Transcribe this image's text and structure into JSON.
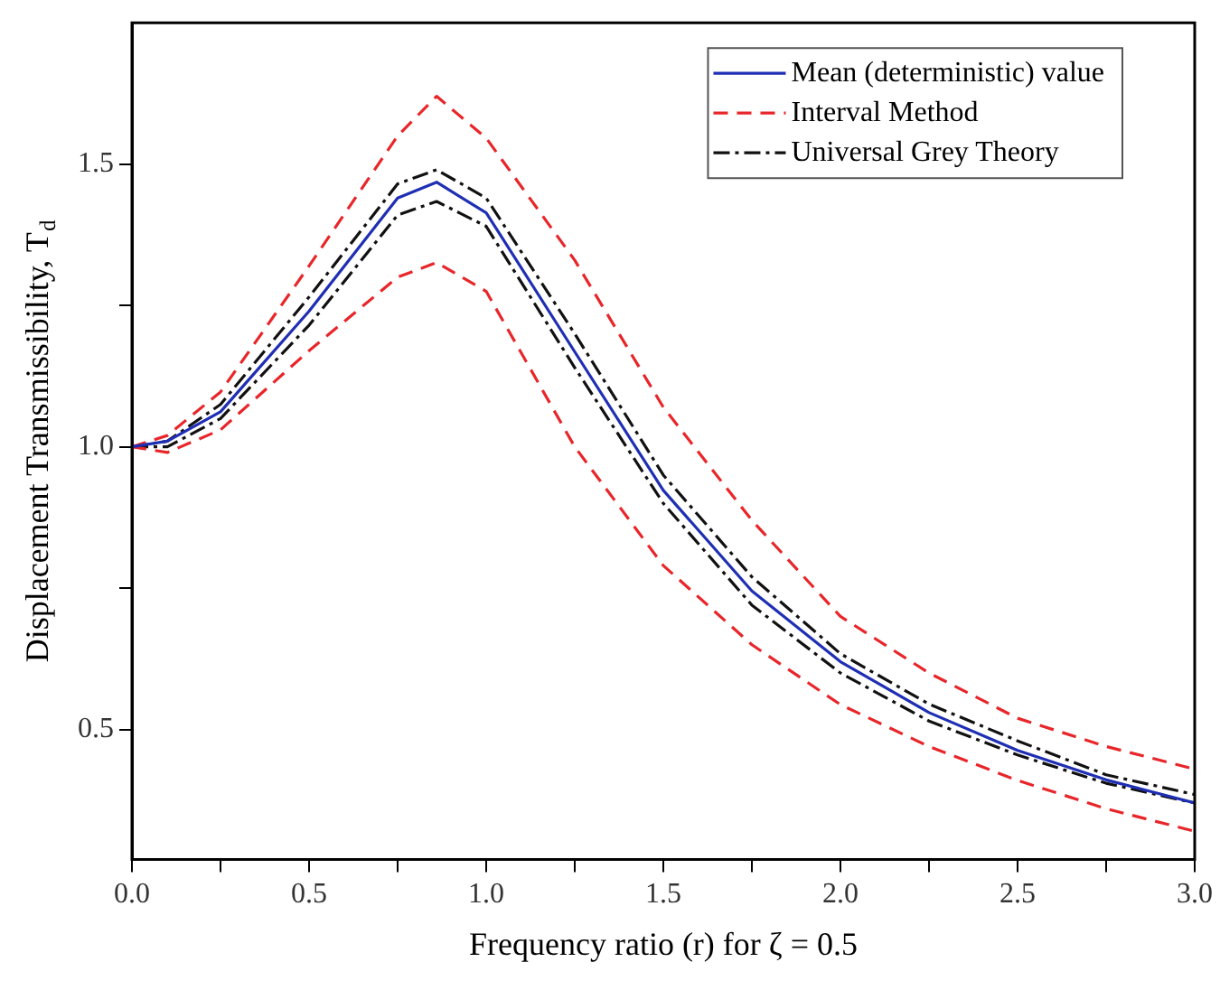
{
  "chart_data": {
    "type": "line",
    "xlabel": "Frequency ratio (r) for ζ = 0.5",
    "ylabel": "Displacement Transmissibility, T$_{d}$",
    "x": [
      0,
      0.1,
      0.25,
      0.5,
      0.75,
      0.86,
      1.0,
      1.25,
      1.5,
      1.75,
      2.0,
      2.25,
      2.5,
      2.75,
      3.0
    ],
    "series": [
      {
        "name": "Mean (deterministic) value",
        "color": "#1f2fb4",
        "line_style": "solid",
        "values": [
          1.0,
          1.01,
          1.062,
          1.24,
          1.44,
          1.468,
          1.414,
          1.168,
          0.923,
          0.745,
          0.62,
          0.53,
          0.463,
          0.411,
          0.37
        ]
      },
      {
        "name": "Interval Method",
        "color": "#e8262a",
        "line_style": "dashed",
        "values": [
          1.0,
          1.02,
          1.097,
          1.32,
          1.55,
          1.62,
          1.546,
          1.33,
          1.07,
          0.87,
          0.7,
          0.6,
          0.52,
          0.47,
          0.43
        ]
      },
      {
        "color": "#e8262a",
        "line_style": "dashed",
        "values": [
          1.0,
          0.99,
          1.03,
          1.17,
          1.3,
          1.326,
          1.275,
          1.0,
          0.79,
          0.65,
          0.544,
          0.47,
          0.41,
          0.36,
          0.32
        ]
      },
      {
        "name": "Universal Grey Theory",
        "color": "#111111",
        "line_style": "dashdot",
        "values": [
          1.0,
          1.01,
          1.075,
          1.265,
          1.465,
          1.49,
          1.44,
          1.2,
          0.95,
          0.77,
          0.634,
          0.545,
          0.48,
          0.42,
          0.385
        ]
      },
      {
        "color": "#111111",
        "line_style": "dashdot",
        "values": [
          1.0,
          1.0,
          1.05,
          1.215,
          1.41,
          1.434,
          1.39,
          1.14,
          0.9,
          0.72,
          0.6,
          0.515,
          0.455,
          0.405,
          0.37
        ]
      }
    ],
    "xlim": [
      0,
      3.0
    ],
    "xticks": [
      {
        "value": 0,
        "label": "0.0"
      },
      {
        "value": 0.25,
        "label": null
      },
      0.5,
      {
        "value": 0.75,
        "label": null
      },
      {
        "value": 1,
        "label": "1.0"
      },
      {
        "value": 1.25,
        "label": null
      },
      1.5,
      {
        "value": 1.75,
        "label": null
      },
      {
        "value": 2,
        "label": "2.0"
      },
      {
        "value": 2.25,
        "label": null
      },
      2.5,
      {
        "value": 2.75,
        "label": null
      },
      {
        "value": 3,
        "label": "3.0"
      }
    ],
    "ylim": [
      0.27,
      1.75
    ],
    "yticks": [
      0.5,
      {
        "value": 0.75,
        "label": null
      },
      {
        "value": 1,
        "label": "1.0"
      },
      {
        "value": 1.25,
        "label": null
      },
      1.5
    ],
    "grid": false,
    "legend": "top right",
    "marker": "none"
  }
}
